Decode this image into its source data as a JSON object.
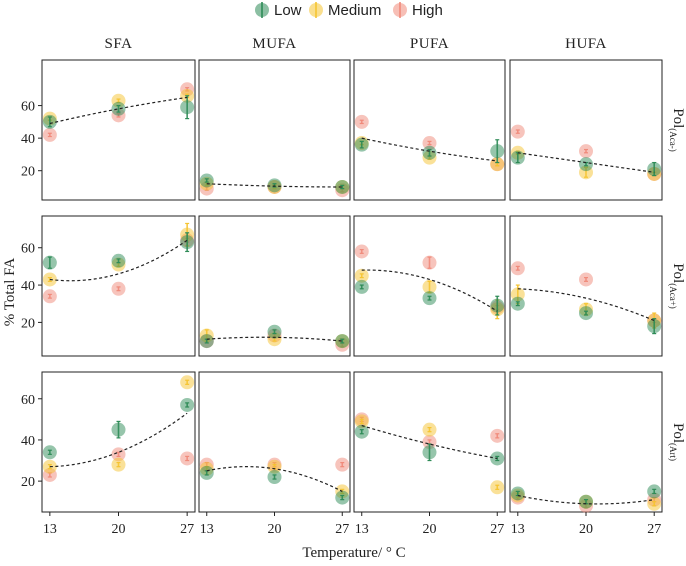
{
  "chart_data": {
    "type": "scatter",
    "legend": {
      "entries": [
        {
          "name": "Low",
          "color": "#2e8b57"
        },
        {
          "name": "Medium",
          "color": "#f5c431"
        },
        {
          "name": "High",
          "color": "#f08a7a"
        }
      ],
      "placement": "top-center"
    },
    "columns": [
      "SFA",
      "MUFA",
      "PUFA",
      "HUFA"
    ],
    "rows": [
      {
        "label_main": "Pol",
        "label_sub": "(Aca-)"
      },
      {
        "label_main": "Pol",
        "label_sub": "(Aca+)"
      },
      {
        "label_main": "Pol",
        "label_sub": "(Art)"
      }
    ],
    "xlabel": "Temperature/ ° C",
    "ylabel": "% Total FA",
    "x_ticks": [
      13,
      20,
      27
    ],
    "x_tick_labels": [
      "13",
      "20",
      "27"
    ],
    "xlim": [
      12.2,
      27.8
    ],
    "panels_rows": [
      {
        "ylim": [
          2,
          88
        ],
        "y_ticks": [
          20,
          40,
          60
        ],
        "y_tick_labels": [
          "20",
          "40",
          "60"
        ],
        "panels": [
          {
            "points": {
              "Low": [
                [
                  13,
                  50,
                  3
                ],
                [
                  20,
                  58,
                  2
                ],
                [
                  27,
                  59,
                  7
                ]
              ],
              "Medium": [
                [
                  13,
                  52,
                  1
                ],
                [
                  20,
                  63,
                  1
                ],
                [
                  27,
                  66,
                  1
                ]
              ],
              "High": [
                [
                  13,
                  42,
                  1
                ],
                [
                  20,
                  54,
                  1
                ],
                [
                  27,
                  70,
                  1
                ]
              ]
            },
            "fit": [
              [
                13,
                49
              ],
              [
                20,
                58
              ],
              [
                27,
                65
              ]
            ]
          },
          {
            "points": {
              "Low": [
                [
                  13,
                  14,
                  1
                ],
                [
                  20,
                  11,
                  1
                ],
                [
                  27,
                  10,
                  1
                ]
              ],
              "Medium": [
                [
                  13,
                  12,
                  1
                ],
                [
                  20,
                  10,
                  1
                ],
                [
                  27,
                  10,
                  1
                ]
              ],
              "High": [
                [
                  13,
                  9,
                  1
                ],
                [
                  20,
                  10,
                  1
                ],
                [
                  27,
                  8,
                  1
                ]
              ]
            },
            "fit": [
              [
                13,
                12
              ],
              [
                20,
                10.5
              ],
              [
                27,
                10
              ]
            ]
          },
          {
            "points": {
              "Low": [
                [
                  13,
                  36,
                  2
                ],
                [
                  20,
                  31,
                  2
                ],
                [
                  27,
                  32,
                  7
                ]
              ],
              "Medium": [
                [
                  13,
                  37,
                  1
                ],
                [
                  20,
                  28,
                  1
                ],
                [
                  27,
                  24,
                  1
                ]
              ],
              "High": [
                [
                  13,
                  50,
                  1
                ],
                [
                  20,
                  37,
                  1
                ],
                [
                  27,
                  24,
                  1
                ]
              ]
            },
            "fit": [
              [
                13,
                40
              ],
              [
                20,
                32
              ],
              [
                27,
                26
              ]
            ]
          },
          {
            "points": {
              "Low": [
                [
                  13,
                  28,
                  3
                ],
                [
                  20,
                  24,
                  1
                ],
                [
                  27,
                  21,
                  4
                ]
              ],
              "Medium": [
                [
                  13,
                  31,
                  1
                ],
                [
                  20,
                  19,
                  3
                ],
                [
                  27,
                  18,
                  1
                ]
              ],
              "High": [
                [
                  13,
                  44,
                  1
                ],
                [
                  20,
                  32,
                  1
                ],
                [
                  27,
                  18,
                  1
                ]
              ]
            },
            "fit": [
              [
                13,
                31
              ],
              [
                20,
                25
              ],
              [
                27,
                19
              ]
            ]
          }
        ]
      },
      {
        "ylim": [
          2,
          77
        ],
        "y_ticks": [
          20,
          40,
          60
        ],
        "y_tick_labels": [
          "20",
          "40",
          "60"
        ],
        "panels": [
          {
            "points": {
              "Low": [
                [
                  13,
                  52,
                  3
                ],
                [
                  20,
                  53,
                  1
                ],
                [
                  27,
                  63,
                  5
                ]
              ],
              "Medium": [
                [
                  13,
                  43,
                  1
                ],
                [
                  20,
                  51,
                  1
                ],
                [
                  27,
                  67,
                  6
                ]
              ],
              "High": [
                [
                  13,
                  34,
                  1
                ],
                [
                  20,
                  38,
                  1
                ],
                [
                  27,
                  64,
                  1
                ]
              ]
            },
            "fit": [
              [
                13,
                43
              ],
              [
                20,
                46
              ],
              [
                27,
                64
              ]
            ]
          },
          {
            "points": {
              "Low": [
                [
                  13,
                  10,
                  1
                ],
                [
                  20,
                  15,
                  1
                ],
                [
                  27,
                  10,
                  1
                ]
              ],
              "Medium": [
                [
                  13,
                  13,
                  3
                ],
                [
                  20,
                  11,
                  1
                ],
                [
                  27,
                  10,
                  1
                ]
              ],
              "High": [
                [
                  13,
                  10,
                  1
                ],
                [
                  20,
                  13,
                  1
                ],
                [
                  27,
                  8,
                  1
                ]
              ]
            },
            "fit": [
              [
                13,
                11
              ],
              [
                20,
                12
              ],
              [
                27,
                10
              ]
            ]
          },
          {
            "points": {
              "Low": [
                [
                  13,
                  39,
                  1
                ],
                [
                  20,
                  33,
                  1
                ],
                [
                  27,
                  29,
                  5
                ]
              ],
              "Medium": [
                [
                  13,
                  45,
                  1
                ],
                [
                  20,
                  39,
                  3
                ],
                [
                  27,
                  27,
                  5
                ]
              ],
              "High": [
                [
                  13,
                  58,
                  1
                ],
                [
                  20,
                  52,
                  3
                ],
                [
                  27,
                  28,
                  1
                ]
              ]
            },
            "fit": [
              [
                13,
                48
              ],
              [
                20,
                43
              ],
              [
                27,
                26
              ]
            ]
          },
          {
            "points": {
              "Low": [
                [
                  13,
                  30,
                  1
                ],
                [
                  20,
                  25,
                  1
                ],
                [
                  27,
                  18,
                  4
                ]
              ],
              "Medium": [
                [
                  13,
                  35,
                  5
                ],
                [
                  20,
                  27,
                  3
                ],
                [
                  27,
                  21,
                  4
                ]
              ],
              "High": [
                [
                  13,
                  49,
                  1
                ],
                [
                  20,
                  43,
                  1
                ],
                [
                  27,
                  21,
                  1
                ]
              ]
            },
            "fit": [
              [
                13,
                38
              ],
              [
                20,
                33
              ],
              [
                27,
                21
              ]
            ]
          }
        ]
      },
      {
        "ylim": [
          5,
          73
        ],
        "y_ticks": [
          20,
          40,
          60
        ],
        "y_tick_labels": [
          "20",
          "40",
          "60"
        ],
        "panels": [
          {
            "points": {
              "Low": [
                [
                  13,
                  34,
                  1
                ],
                [
                  20,
                  45,
                  4
                ],
                [
                  27,
                  57,
                  1
                ]
              ],
              "Medium": [
                [
                  13,
                  27,
                  1
                ],
                [
                  20,
                  28,
                  1
                ],
                [
                  27,
                  68,
                  1
                ]
              ],
              "High": [
                [
                  13,
                  23,
                  1
                ],
                [
                  20,
                  33,
                  1
                ],
                [
                  27,
                  31,
                  1
                ]
              ]
            },
            "fit": [
              [
                13,
                27
              ],
              [
                20,
                34
              ],
              [
                27,
                53
              ]
            ]
          },
          {
            "points": {
              "Low": [
                [
                  13,
                  24,
                  1
                ],
                [
                  20,
                  22,
                  1
                ],
                [
                  27,
                  12,
                  1
                ]
              ],
              "Medium": [
                [
                  13,
                  26,
                  1
                ],
                [
                  20,
                  27,
                  1
                ],
                [
                  27,
                  15,
                  1
                ]
              ],
              "High": [
                [
                  13,
                  28,
                  1
                ],
                [
                  20,
                  28,
                  1
                ],
                [
                  27,
                  28,
                  1
                ]
              ]
            },
            "fit": [
              [
                13,
                25
              ],
              [
                20,
                26
              ],
              [
                27,
                15
              ]
            ]
          },
          {
            "points": {
              "Low": [
                [
                  13,
                  44,
                  1
                ],
                [
                  20,
                  34,
                  4
                ],
                [
                  27,
                  31,
                  1
                ]
              ],
              "Medium": [
                [
                  13,
                  49,
                  1
                ],
                [
                  20,
                  45,
                  1
                ],
                [
                  27,
                  17,
                  1
                ]
              ],
              "High": [
                [
                  13,
                  50,
                  1
                ],
                [
                  20,
                  39,
                  1
                ],
                [
                  27,
                  42,
                  1
                ]
              ]
            },
            "fit": [
              [
                13,
                47
              ],
              [
                20,
                38
              ],
              [
                27,
                31
              ]
            ]
          },
          {
            "points": {
              "Low": [
                [
                  13,
                  14,
                  1
                ],
                [
                  20,
                  10,
                  1
                ],
                [
                  27,
                  15,
                  1
                ]
              ],
              "Medium": [
                [
                  13,
                  13,
                  1
                ],
                [
                  20,
                  10,
                  1
                ],
                [
                  27,
                  9,
                  1
                ]
              ],
              "High": [
                [
                  13,
                  12,
                  1
                ],
                [
                  20,
                  8,
                  1
                ],
                [
                  27,
                  11,
                  1
                ]
              ]
            },
            "fit": [
              [
                13,
                13
              ],
              [
                20,
                9
              ],
              [
                27,
                11
              ]
            ]
          }
        ]
      }
    ]
  }
}
